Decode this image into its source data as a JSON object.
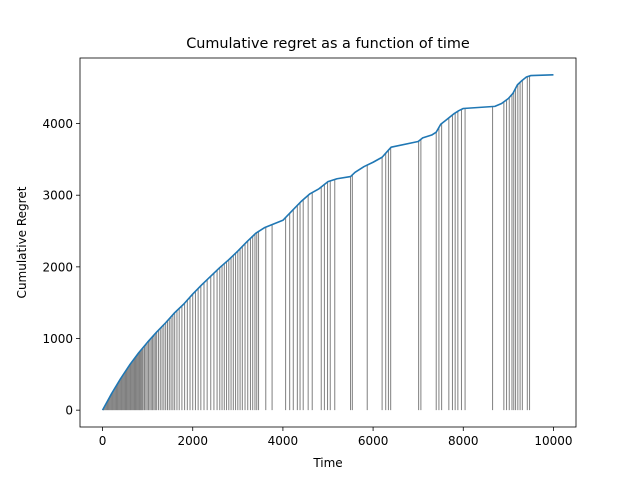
{
  "chart_data": {
    "type": "line",
    "title": "Cumulative regret as a function of time",
    "xlabel": "Time",
    "ylabel": "Cumulative Regret",
    "xlim": [
      -500,
      10500
    ],
    "ylim": [
      -235,
      4915
    ],
    "x_ticks": [
      0,
      2000,
      4000,
      6000,
      8000,
      10000
    ],
    "y_ticks": [
      0,
      1000,
      2000,
      3000,
      4000
    ],
    "grid": false,
    "colors": {
      "line": "#1f77b4",
      "vlines": "#808080"
    },
    "series": [
      {
        "x": [
          0,
          200,
          400,
          600,
          800,
          1000,
          1200,
          1400,
          1600,
          1800,
          2000,
          2200,
          2400,
          2600,
          2800,
          3000,
          3200,
          3400,
          3600,
          3800,
          4000,
          4200,
          4400,
          4600,
          4800,
          5000,
          5200,
          5500,
          5600,
          5800,
          6000,
          6200,
          6300,
          6400,
          7000,
          7100,
          7300,
          7400,
          7500,
          7600,
          7800,
          7900,
          8000,
          8700,
          8850,
          9000,
          9100,
          9200,
          9300,
          9400,
          9500,
          10000
        ],
        "y": [
          0,
          230,
          440,
          630,
          800,
          950,
          1090,
          1220,
          1360,
          1480,
          1620,
          1750,
          1870,
          1990,
          2100,
          2220,
          2350,
          2470,
          2550,
          2600,
          2650,
          2780,
          2910,
          3020,
          3090,
          3190,
          3230,
          3260,
          3320,
          3400,
          3460,
          3530,
          3600,
          3670,
          3750,
          3800,
          3840,
          3880,
          3990,
          4040,
          4140,
          4180,
          4210,
          4240,
          4280,
          4350,
          4420,
          4540,
          4600,
          4650,
          4670,
          4680
        ]
      }
    ],
    "vlines_x": [
      20,
      40,
      60,
      80,
      100,
      120,
      140,
      160,
      180,
      200,
      220,
      240,
      260,
      280,
      300,
      320,
      340,
      360,
      380,
      400,
      420,
      440,
      460,
      480,
      500,
      520,
      540,
      560,
      580,
      600,
      620,
      640,
      660,
      680,
      700,
      720,
      740,
      760,
      780,
      800,
      820,
      840,
      860,
      880,
      900,
      930,
      960,
      990,
      1020,
      1050,
      1080,
      1110,
      1140,
      1170,
      1200,
      1240,
      1280,
      1320,
      1360,
      1400,
      1440,
      1480,
      1520,
      1560,
      1600,
      1650,
      1700,
      1760,
      1820,
      1880,
      1940,
      2000,
      2060,
      2120,
      2180,
      2250,
      2320,
      2400,
      2470,
      2540,
      2600,
      2650,
      2700,
      2750,
      2800,
      2850,
      2900,
      2950,
      3000,
      3050,
      3100,
      3160,
      3220,
      3280,
      3330,
      3380,
      3420,
      3460,
      3620,
      3760,
      4060,
      4150,
      4230,
      4320,
      4380,
      4450,
      4560,
      4650,
      4850,
      4920,
      4990,
      5050,
      5150,
      5500,
      5540,
      5870,
      6200,
      6280,
      6340,
      6390,
      7010,
      7060,
      7400,
      7460,
      7520,
      7680,
      7760,
      7820,
      7880,
      7960,
      8040,
      8650,
      8900,
      8960,
      9020,
      9080,
      9120,
      9160,
      9210,
      9260,
      9310,
      9420,
      9470
    ]
  }
}
